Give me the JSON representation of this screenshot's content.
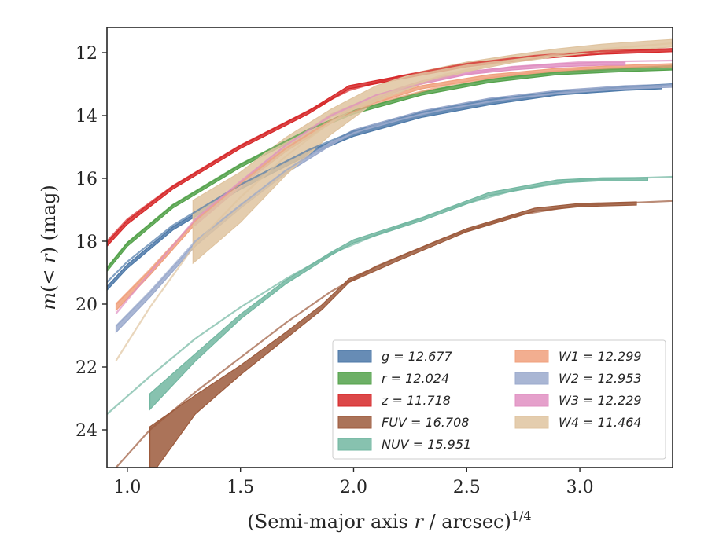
{
  "chart_data": {
    "type": "line",
    "title": "",
    "xlabel": "(Semi-major axis r / arcsec)^1/4",
    "xlabel_parts": {
      "main": "(Semi-major axis ",
      "var": "r",
      "rest": " / arcsec)",
      "sup": "1/4"
    },
    "ylabel": "m(< r) (mag)",
    "ylabel_parts": {
      "main": "m",
      "open": "(< ",
      "var": "r",
      "close": ") (mag)"
    },
    "xlim": [
      0.91,
      3.41
    ],
    "ylim": [
      25.2,
      11.2
    ],
    "y_inverted": true,
    "xticks": [
      1.0,
      1.5,
      2.0,
      2.5,
      3.0
    ],
    "xtick_labels": [
      "1.0",
      "1.5",
      "2.0",
      "2.5",
      "3.0"
    ],
    "yticks": [
      12,
      14,
      16,
      18,
      20,
      22,
      24
    ],
    "ytick_labels": [
      "12",
      "14",
      "16",
      "18",
      "20",
      "22",
      "24"
    ],
    "grid": false,
    "legend_position": "lower-right",
    "series": [
      {
        "name": "g",
        "label": "g = 12.677",
        "color": "#4c78a8",
        "band": {
          "x": [
            0.91,
            1.0,
            1.2,
            1.5,
            1.8,
            2.0,
            2.3,
            2.6,
            2.9,
            3.2,
            3.36
          ],
          "y": [
            19.5,
            18.8,
            17.6,
            16.3,
            15.2,
            14.6,
            14.0,
            13.6,
            13.3,
            13.15,
            13.1
          ],
          "width": [
            0.06,
            0.06,
            0.05,
            0.05,
            0.06,
            0.06,
            0.06,
            0.06,
            0.05,
            0.05,
            0.05
          ]
        },
        "model": {
          "x": [
            0.91,
            1.0,
            1.2,
            1.5,
            1.8,
            2.0,
            2.3,
            2.6,
            2.9,
            3.2,
            3.41
          ],
          "y": [
            19.3,
            18.65,
            17.5,
            16.2,
            15.1,
            14.5,
            13.9,
            13.5,
            13.25,
            13.1,
            13.0
          ]
        }
      },
      {
        "name": "r",
        "label": "r = 12.024",
        "color": "#54a24b",
        "band": {
          "x": [
            0.91,
            1.0,
            1.2,
            1.5,
            1.8,
            2.0,
            2.3,
            2.6,
            2.9,
            3.2,
            3.41
          ],
          "y": [
            18.9,
            18.1,
            16.9,
            15.6,
            14.5,
            13.9,
            13.3,
            12.9,
            12.65,
            12.55,
            12.5
          ],
          "width": [
            0.06,
            0.06,
            0.05,
            0.05,
            0.05,
            0.05,
            0.05,
            0.05,
            0.05,
            0.05,
            0.05
          ]
        },
        "model": {
          "x": [
            0.91,
            1.0,
            1.2,
            1.5,
            1.8,
            2.0,
            2.3,
            2.6,
            2.9,
            3.2,
            3.41
          ],
          "y": [
            18.85,
            18.05,
            16.85,
            15.55,
            14.45,
            13.85,
            13.25,
            12.85,
            12.62,
            12.5,
            12.42
          ]
        }
      },
      {
        "name": "z",
        "label": "z = 11.718",
        "color": "#d62728",
        "band": {
          "x": [
            0.91,
            1.0,
            1.2,
            1.5,
            1.8,
            1.98,
            2.2,
            2.5,
            2.8,
            3.1,
            3.41
          ],
          "y": [
            18.1,
            17.4,
            16.3,
            15.0,
            13.9,
            13.1,
            12.8,
            12.4,
            12.15,
            12.0,
            11.92
          ],
          "width": [
            0.06,
            0.06,
            0.05,
            0.05,
            0.05,
            0.05,
            0.05,
            0.05,
            0.05,
            0.05,
            0.05
          ]
        },
        "model": {
          "x": [
            0.91,
            1.0,
            1.2,
            1.5,
            1.8,
            1.98,
            2.2,
            2.5,
            2.8,
            3.1,
            3.41
          ],
          "y": [
            18.0,
            17.3,
            16.25,
            14.95,
            13.85,
            13.2,
            12.75,
            12.35,
            12.1,
            11.95,
            11.88
          ]
        }
      },
      {
        "name": "FUV",
        "label": "FUV = 16.708",
        "color": "#9c5a3c",
        "band": {
          "x": [
            1.1,
            1.3,
            1.5,
            1.7,
            1.86,
            1.98,
            2.2,
            2.5,
            2.8,
            3.0,
            3.25
          ],
          "y": [
            24.7,
            23.2,
            22.1,
            21.0,
            20.1,
            19.25,
            18.55,
            17.65,
            17.0,
            16.85,
            16.8
          ],
          "width": [
            0.8,
            0.3,
            0.15,
            0.1,
            0.08,
            0.06,
            0.06,
            0.05,
            0.05,
            0.05,
            0.05
          ]
        },
        "model": {
          "x": [
            0.95,
            1.1,
            1.3,
            1.5,
            1.7,
            1.9,
            2.1,
            2.4,
            2.7,
            3.0,
            3.41
          ],
          "y": [
            25.2,
            24.0,
            22.8,
            21.7,
            20.6,
            19.6,
            18.8,
            17.9,
            17.2,
            16.85,
            16.72
          ]
        }
      },
      {
        "name": "NUV",
        "label": "NUV = 15.951",
        "color": "#72b7a1",
        "band": {
          "x": [
            1.1,
            1.3,
            1.5,
            1.7,
            1.9,
            2.0,
            2.3,
            2.6,
            2.9,
            3.1,
            3.3
          ],
          "y": [
            23.1,
            21.7,
            20.4,
            19.3,
            18.4,
            18.0,
            17.3,
            16.5,
            16.1,
            16.03,
            16.02
          ],
          "width": [
            0.25,
            0.12,
            0.08,
            0.06,
            0.05,
            0.05,
            0.05,
            0.05,
            0.05,
            0.05,
            0.05
          ]
        },
        "model": {
          "x": [
            0.91,
            1.1,
            1.3,
            1.5,
            1.7,
            1.9,
            2.1,
            2.4,
            2.7,
            3.0,
            3.41
          ],
          "y": [
            23.5,
            22.3,
            21.1,
            20.1,
            19.2,
            18.4,
            17.8,
            17.0,
            16.4,
            16.05,
            15.95
          ]
        }
      },
      {
        "name": "W1",
        "label": "W1 = 12.299",
        "color": "#f0a07c",
        "band": {
          "x": [
            0.95,
            1.1,
            1.3,
            1.5,
            1.7,
            1.9,
            2.0,
            2.3,
            2.6,
            2.9,
            3.2,
            3.41
          ],
          "y": [
            20.1,
            19.0,
            17.4,
            16.2,
            15.1,
            14.2,
            13.75,
            13.1,
            12.75,
            12.55,
            12.45,
            12.4
          ],
          "width": [
            0.1,
            0.08,
            0.06,
            0.05,
            0.05,
            0.05,
            0.05,
            0.05,
            0.05,
            0.05,
            0.05,
            0.05
          ]
        },
        "model": {
          "x": [
            0.95,
            1.1,
            1.3,
            1.5,
            1.7,
            1.9,
            2.1,
            2.4,
            2.7,
            3.0,
            3.41
          ],
          "y": [
            20.0,
            18.9,
            17.35,
            16.15,
            15.05,
            14.15,
            13.6,
            13.05,
            12.7,
            12.52,
            12.42
          ]
        }
      },
      {
        "name": "W2",
        "label": "W2 = 12.953",
        "color": "#9aa9cc",
        "band": {
          "x": [
            0.95,
            1.1,
            1.3,
            1.5,
            1.7,
            1.9,
            2.0,
            2.3,
            2.6,
            2.9,
            3.2,
            3.41
          ],
          "y": [
            20.8,
            19.7,
            18.1,
            16.9,
            15.8,
            14.9,
            14.5,
            13.9,
            13.5,
            13.25,
            13.1,
            13.05
          ],
          "width": [
            0.1,
            0.08,
            0.06,
            0.05,
            0.05,
            0.05,
            0.05,
            0.05,
            0.05,
            0.05,
            0.05,
            0.05
          ]
        },
        "model": {
          "x": [
            0.95,
            1.1,
            1.3,
            1.5,
            1.7,
            1.9,
            2.1,
            2.4,
            2.7,
            3.0,
            3.41
          ],
          "y": [
            20.7,
            19.6,
            18.0,
            16.85,
            15.75,
            14.85,
            14.3,
            13.8,
            13.45,
            13.2,
            13.02
          ]
        }
      },
      {
        "name": "W3",
        "label": "W3 = 12.229",
        "color": "#e08fc2",
        "band": {
          "x": [
            1.3,
            1.5,
            1.7,
            1.9,
            2.1,
            2.3,
            2.5,
            2.7,
            2.9,
            3.1,
            3.2
          ],
          "y": [
            17.4,
            16.2,
            15.0,
            14.0,
            13.4,
            12.95,
            12.65,
            12.5,
            12.4,
            12.35,
            12.35
          ],
          "width": [
            0.1,
            0.08,
            0.06,
            0.05,
            0.05,
            0.05,
            0.05,
            0.05,
            0.05,
            0.05,
            0.05
          ]
        },
        "model": {
          "x": [
            0.95,
            1.1,
            1.3,
            1.5,
            1.7,
            1.9,
            2.1,
            2.4,
            2.7,
            3.0,
            3.41
          ],
          "y": [
            20.3,
            19.0,
            17.3,
            16.1,
            14.95,
            14.0,
            13.35,
            12.8,
            12.45,
            12.3,
            12.25
          ]
        }
      },
      {
        "name": "W4",
        "label": "W4 = 11.464",
        "color": "#dfc4a0",
        "band": {
          "x": [
            1.29,
            1.5,
            1.7,
            1.9,
            2.1,
            2.3,
            2.5,
            2.7,
            2.9,
            3.1,
            3.3,
            3.41
          ],
          "y": [
            17.7,
            16.6,
            15.3,
            14.2,
            13.3,
            12.8,
            12.45,
            12.2,
            12.0,
            11.85,
            11.75,
            11.7
          ],
          "width": [
            1.0,
            0.8,
            0.6,
            0.4,
            0.25,
            0.2,
            0.15,
            0.12,
            0.12,
            0.12,
            0.12,
            0.12
          ]
        },
        "model": {
          "x": [
            0.95,
            1.1,
            1.3,
            1.5,
            1.7,
            1.9,
            2.1,
            2.4,
            2.7,
            3.0,
            3.41
          ],
          "y": [
            21.8,
            20.1,
            18.1,
            16.6,
            15.3,
            14.2,
            13.4,
            12.7,
            12.25,
            11.95,
            11.7
          ]
        }
      }
    ]
  }
}
